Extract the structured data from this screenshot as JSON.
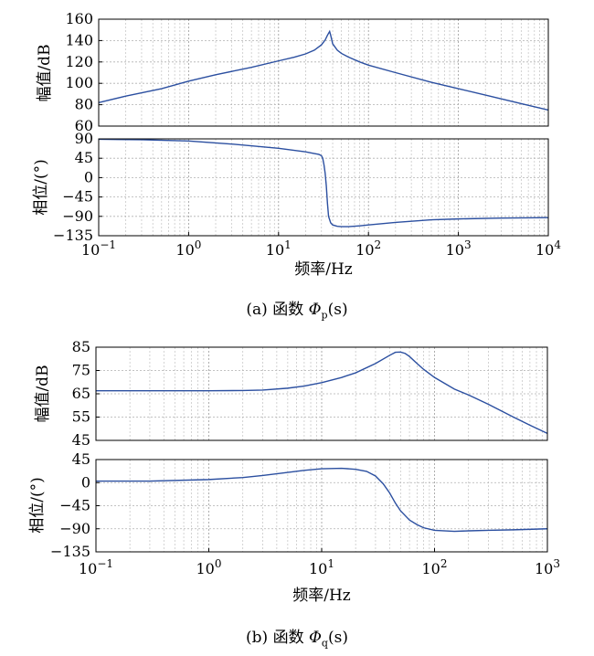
{
  "figures": [
    {
      "caption": {
        "prefix": "(a) 函数 ",
        "symbol": "Φ",
        "subscript": "p",
        "suffix": "(s)"
      },
      "xlabel": "频率/Hz",
      "xlim_exp": [
        -1,
        4
      ],
      "x_tick_labels": [
        "10−1",
        "100",
        "101",
        "102",
        "103",
        "104"
      ],
      "x_tick_bases": [
        "10",
        "10",
        "10",
        "10",
        "10",
        "10"
      ],
      "x_tick_exps": [
        "−1",
        "0",
        "1",
        "2",
        "3",
        "4"
      ]
    },
    {
      "caption": {
        "prefix": "(b) 函数 ",
        "symbol": "Φ",
        "subscript": "q",
        "suffix": "(s)"
      },
      "xlabel": "频率/Hz",
      "xlim_exp": [
        -1,
        3
      ],
      "x_tick_labels": [
        "10−1",
        "100",
        "101",
        "102",
        "103"
      ],
      "x_tick_bases": [
        "10",
        "10",
        "10",
        "10",
        "10"
      ],
      "x_tick_exps": [
        "−1",
        "0",
        "1",
        "2",
        "3"
      ]
    }
  ],
  "chart_data": [
    {
      "type": "line",
      "xscale": "log",
      "xlim": [
        0.1,
        10000
      ],
      "ylabel": "幅值/dB",
      "ylim": [
        60,
        160
      ],
      "yticks": [
        60,
        80,
        100,
        120,
        140,
        160
      ],
      "grid": true,
      "color": "#2b4fa0",
      "series": [
        {
          "x": [
            0.1,
            0.2,
            0.5,
            1,
            2,
            5,
            10,
            15,
            20,
            25,
            30,
            33,
            35,
            37,
            38,
            40,
            45,
            50,
            60,
            80,
            100,
            200,
            500,
            1000,
            2000,
            5000,
            10000
          ],
          "values": [
            82,
            88,
            95,
            102,
            108,
            115,
            121,
            124.5,
            127.5,
            131,
            136,
            140.5,
            145,
            148.5,
            145,
            137,
            131,
            128,
            124.5,
            120,
            117,
            110,
            101,
            95,
            89,
            81,
            75
          ]
        }
      ]
    },
    {
      "type": "line",
      "xscale": "log",
      "xlim": [
        0.1,
        10000
      ],
      "ylabel": "相位/(°)",
      "ylim": [
        -135,
        90
      ],
      "yticks": [
        -135,
        -90,
        -45,
        0,
        45,
        90
      ],
      "grid": true,
      "color": "#2b4fa0",
      "series": [
        {
          "x": [
            0.1,
            0.3,
            1,
            3,
            10,
            20,
            25,
            28,
            30,
            31,
            32,
            33,
            34,
            35,
            36,
            38,
            40,
            45,
            50,
            60,
            80,
            100,
            200,
            500,
            1000,
            3000,
            10000
          ],
          "values": [
            89,
            88,
            85,
            78,
            68,
            60,
            56,
            54,
            51,
            45,
            30,
            10,
            -20,
            -60,
            -90,
            -105,
            -110,
            -113,
            -114,
            -114,
            -112,
            -110,
            -104,
            -98,
            -96,
            -94,
            -93
          ]
        }
      ]
    },
    {
      "type": "line",
      "xscale": "log",
      "xlim": [
        0.1,
        1000
      ],
      "ylabel": "幅值/dB",
      "ylim": [
        45,
        85
      ],
      "yticks": [
        45,
        55,
        65,
        75,
        85
      ],
      "grid": true,
      "color": "#2b4fa0",
      "series": [
        {
          "x": [
            0.1,
            0.3,
            1,
            2,
            3,
            5,
            7,
            10,
            15,
            20,
            30,
            40,
            45,
            50,
            55,
            60,
            70,
            80,
            100,
            150,
            200,
            300,
            500,
            700,
            1000
          ],
          "values": [
            66.3,
            66.3,
            66.3,
            66.4,
            66.6,
            67.4,
            68.3,
            69.8,
            72,
            74,
            78,
            81.5,
            82.8,
            82.9,
            82.3,
            81,
            78,
            75.5,
            72,
            67,
            64.5,
            60.5,
            55,
            51.5,
            48
          ]
        }
      ]
    },
    {
      "type": "line",
      "xscale": "log",
      "xlim": [
        0.1,
        1000
      ],
      "ylabel": "相位/(°)",
      "ylim": [
        -135,
        45
      ],
      "yticks": [
        -135,
        -90,
        -45,
        0,
        45
      ],
      "grid": true,
      "color": "#2b4fa0",
      "series": [
        {
          "x": [
            0.1,
            0.3,
            1,
            2,
            3,
            5,
            7,
            10,
            15,
            20,
            25,
            30,
            35,
            40,
            45,
            50,
            60,
            70,
            80,
            100,
            150,
            200,
            300,
            500,
            1000
          ],
          "values": [
            3,
            3,
            6,
            10,
            14,
            20,
            24,
            27,
            28,
            26,
            22,
            13,
            -2,
            -20,
            -40,
            -55,
            -73,
            -82,
            -88,
            -93,
            -95,
            -94,
            -93,
            -92,
            -90
          ]
        }
      ]
    }
  ]
}
